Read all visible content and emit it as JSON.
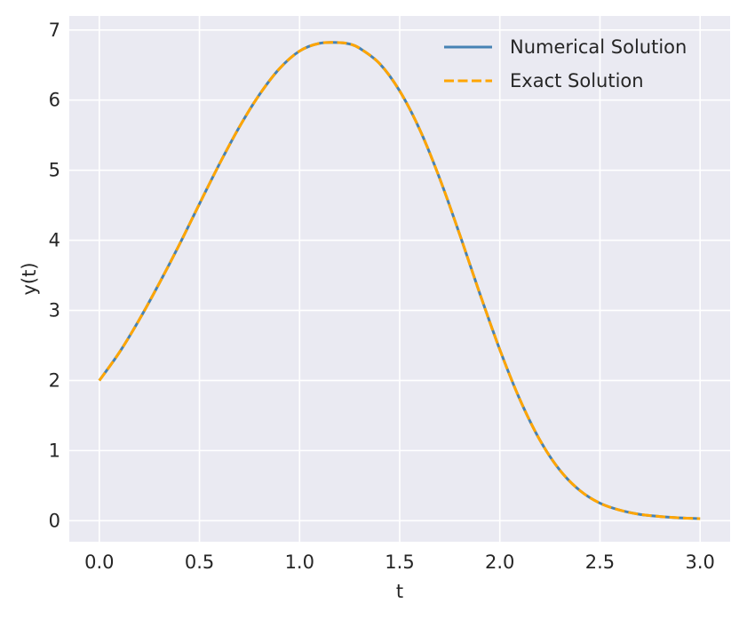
{
  "chart_data": {
    "type": "line",
    "title": "",
    "xlabel": "t",
    "ylabel": "y(t)",
    "xlim": [
      -0.15,
      3.15
    ],
    "ylim": [
      -0.3,
      7.2
    ],
    "grid": true,
    "legend_position": "top-right",
    "x_ticks": [
      "0.0",
      "0.5",
      "1.0",
      "1.5",
      "2.0",
      "2.5",
      "3.0"
    ],
    "y_ticks": [
      "0",
      "1",
      "2",
      "3",
      "4",
      "5",
      "6",
      "7"
    ],
    "x": [
      0.0,
      0.1,
      0.2,
      0.3,
      0.4,
      0.5,
      0.6,
      0.7,
      0.8,
      0.9,
      1.0,
      1.1,
      1.2,
      1.25,
      1.3,
      1.4,
      1.5,
      1.6,
      1.7,
      1.8,
      1.9,
      2.0,
      2.1,
      2.2,
      2.3,
      2.4,
      2.5,
      2.6,
      2.7,
      2.8,
      2.9,
      3.0
    ],
    "series": [
      {
        "name": "Numerical Solution",
        "color": "#4682b4",
        "style": "solid",
        "values": [
          2.0,
          2.4,
          2.87,
          3.39,
          3.94,
          4.52,
          5.09,
          5.62,
          6.08,
          6.45,
          6.7,
          6.81,
          6.82,
          6.8,
          6.74,
          6.52,
          6.13,
          5.58,
          4.88,
          4.08,
          3.24,
          2.44,
          1.73,
          1.15,
          0.72,
          0.43,
          0.25,
          0.15,
          0.09,
          0.06,
          0.04,
          0.03
        ]
      },
      {
        "name": "Exact Solution",
        "color": "#ffa500",
        "style": "dashed",
        "values": [
          2.0,
          2.4,
          2.87,
          3.39,
          3.94,
          4.52,
          5.09,
          5.62,
          6.08,
          6.45,
          6.7,
          6.81,
          6.82,
          6.8,
          6.74,
          6.52,
          6.13,
          5.58,
          4.88,
          4.08,
          3.24,
          2.44,
          1.73,
          1.15,
          0.72,
          0.43,
          0.25,
          0.15,
          0.09,
          0.06,
          0.04,
          0.03
        ]
      }
    ]
  },
  "colors": {
    "plot_background": "#eaeaf2",
    "grid": "#ffffff",
    "text": "#262626"
  }
}
